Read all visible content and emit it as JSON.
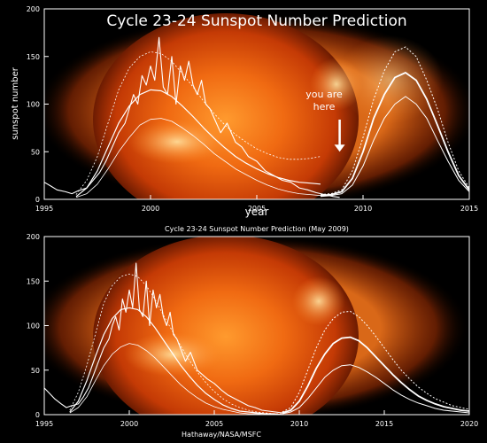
{
  "chart_data": [
    {
      "type": "line",
      "title": "Cycle 23-24 Sunspot Number Prediction",
      "ylabel": "sunspot number",
      "xlabel": "year",
      "xlim": [
        1995,
        2015
      ],
      "ylim": [
        0,
        200
      ],
      "x_ticks": [
        "1995",
        "2000",
        "2005",
        "2010",
        "2015"
      ],
      "y_ticks": [
        "0",
        "50",
        "100",
        "150",
        "200"
      ],
      "annotation": {
        "text_line1": "you are",
        "text_line2": "here",
        "x": 2008.9,
        "y": 50
      },
      "observed": {
        "x": [
          1995.0,
          1995.3,
          1995.6,
          1996.0,
          1996.3,
          1996.6,
          1997.0,
          1997.3,
          1997.6,
          1997.9,
          1998.2,
          1998.5,
          1998.8,
          1999.0,
          1999.2,
          1999.4,
          1999.6,
          1999.8,
          2000.0,
          2000.2,
          2000.4,
          2000.6,
          2000.8,
          2001.0,
          2001.2,
          2001.4,
          2001.6,
          2001.8,
          2002.0,
          2002.2,
          2002.4,
          2002.6,
          2002.8,
          2003.0,
          2003.3,
          2003.6,
          2004.0,
          2004.3,
          2004.6,
          2005.0,
          2005.4,
          2005.8,
          2006.2,
          2006.6,
          2007.0,
          2007.4,
          2007.8,
          2008.2,
          2008.6,
          2008.9
        ],
        "y": [
          18,
          14,
          10,
          8,
          6,
          9,
          12,
          20,
          28,
          40,
          55,
          70,
          80,
          95,
          110,
          100,
          130,
          120,
          140,
          125,
          170,
          118,
          110,
          150,
          100,
          140,
          125,
          145,
          120,
          110,
          125,
          100,
          95,
          85,
          70,
          80,
          60,
          55,
          45,
          40,
          30,
          25,
          20,
          18,
          12,
          10,
          7,
          5,
          3,
          2
        ]
      },
      "prediction": {
        "x": [
          2008.0,
          2008.5,
          2009.0,
          2009.5,
          2010.0,
          2010.5,
          2011.0,
          2011.5,
          2012.0,
          2012.5,
          2013.0,
          2013.5,
          2014.0,
          2014.5,
          2015.0
        ],
        "upper": [
          5,
          6,
          10,
          30,
          65,
          105,
          135,
          155,
          160,
          150,
          125,
          95,
          60,
          30,
          12
        ],
        "middle": [
          4,
          5,
          8,
          22,
          50,
          85,
          110,
          128,
          133,
          125,
          105,
          78,
          50,
          25,
          10
        ],
        "lower": [
          3,
          4,
          6,
          15,
          35,
          62,
          85,
          100,
          108,
          100,
          85,
          62,
          40,
          20,
          8
        ]
      },
      "cycle23_fit": {
        "x": [
          1996.5,
          1997.0,
          1997.5,
          1998.0,
          1998.5,
          1999.0,
          1999.5,
          2000.0,
          2000.5,
          2001.0,
          2001.5,
          2002.0,
          2002.5,
          2003.0,
          2003.5,
          2004.0,
          2004.5,
          2005.0,
          2005.5,
          2006.0,
          2006.5,
          2007.0,
          2007.5,
          2008.0
        ],
        "upper": [
          5,
          20,
          45,
          80,
          115,
          138,
          150,
          155,
          153,
          145,
          132,
          118,
          103,
          90,
          78,
          68,
          60,
          53,
          48,
          44,
          42,
          42,
          43,
          45
        ],
        "middle": [
          3,
          12,
          30,
          55,
          80,
          98,
          110,
          115,
          114,
          108,
          98,
          87,
          75,
          64,
          54,
          45,
          38,
          32,
          27,
          23,
          20,
          18,
          17,
          16
        ],
        "lower": [
          2,
          6,
          16,
          32,
          50,
          65,
          78,
          84,
          85,
          82,
          75,
          67,
          58,
          48,
          40,
          32,
          26,
          20,
          15,
          11,
          8,
          6,
          5,
          4
        ]
      }
    },
    {
      "type": "line",
      "title": "Cycle 23-24 Sunspot Number Prediction (May 2009)",
      "credit": "Hathaway/NASA/MSFC",
      "xlim": [
        1995,
        2020
      ],
      "ylim": [
        0,
        200
      ],
      "x_ticks": [
        "1995",
        "2000",
        "2005",
        "2010",
        "2015",
        "2020"
      ],
      "y_ticks": [
        "0",
        "50",
        "100",
        "150",
        "200"
      ],
      "observed": {
        "x": [
          1995.0,
          1995.3,
          1995.6,
          1996.0,
          1996.3,
          1996.6,
          1997.0,
          1997.3,
          1997.6,
          1997.9,
          1998.2,
          1998.5,
          1998.8,
          1999.0,
          1999.2,
          1999.4,
          1999.6,
          1999.8,
          2000.0,
          2000.2,
          2000.4,
          2000.6,
          2000.8,
          2001.0,
          2001.2,
          2001.4,
          2001.6,
          2001.8,
          2002.0,
          2002.2,
          2002.4,
          2002.6,
          2002.8,
          2003.0,
          2003.3,
          2003.6,
          2004.0,
          2004.3,
          2004.6,
          2005.0,
          2005.4,
          2005.8,
          2006.2,
          2006.6,
          2007.0,
          2007.4,
          2007.8,
          2008.2,
          2008.6,
          2009.0,
          2009.3
        ],
        "y": [
          30,
          24,
          18,
          12,
          8,
          10,
          12,
          20,
          30,
          45,
          60,
          75,
          85,
          100,
          110,
          95,
          130,
          115,
          140,
          120,
          170,
          118,
          110,
          150,
          100,
          140,
          120,
          135,
          110,
          100,
          115,
          90,
          85,
          75,
          60,
          70,
          50,
          45,
          40,
          35,
          28,
          22,
          18,
          14,
          10,
          8,
          5,
          4,
          3,
          2,
          2
        ]
      },
      "prediction": {
        "x": [
          2009.0,
          2009.5,
          2010.0,
          2010.5,
          2011.0,
          2011.5,
          2012.0,
          2012.5,
          2013.0,
          2013.5,
          2014.0,
          2014.5,
          2015.0,
          2015.5,
          2016.0,
          2016.5,
          2017.0,
          2017.5,
          2018.0,
          2018.5,
          2019.0,
          2019.5,
          2020.0
        ],
        "upper": [
          3,
          8,
          25,
          50,
          75,
          95,
          108,
          115,
          116,
          110,
          100,
          88,
          75,
          62,
          50,
          40,
          31,
          24,
          18,
          14,
          10,
          8,
          6
        ],
        "middle": [
          2,
          5,
          15,
          32,
          52,
          68,
          80,
          86,
          87,
          83,
          75,
          65,
          55,
          45,
          36,
          28,
          21,
          16,
          12,
          9,
          7,
          5,
          4
        ],
        "lower": [
          1,
          3,
          8,
          18,
          30,
          42,
          50,
          55,
          56,
          53,
          48,
          42,
          35,
          28,
          22,
          17,
          13,
          10,
          7,
          5,
          4,
          3,
          2
        ]
      },
      "cycle23_fit": {
        "x": [
          1996.5,
          1997.0,
          1997.5,
          1998.0,
          1998.5,
          1999.0,
          1999.5,
          2000.0,
          2000.5,
          2001.0,
          2001.5,
          2002.0,
          2002.5,
          2003.0,
          2003.5,
          2004.0,
          2004.5,
          2005.0,
          2005.5,
          2006.0,
          2006.5,
          2007.0,
          2007.5,
          2008.0,
          2008.5,
          2009.0
        ],
        "upper": [
          5,
          25,
          55,
          90,
          125,
          145,
          155,
          158,
          155,
          145,
          130,
          112,
          95,
          78,
          62,
          48,
          36,
          26,
          18,
          12,
          8,
          5,
          3,
          2,
          1,
          1
        ],
        "middle": [
          3,
          15,
          38,
          65,
          90,
          108,
          118,
          120,
          118,
          110,
          98,
          84,
          70,
          56,
          44,
          33,
          24,
          17,
          11,
          7,
          4,
          3,
          2,
          1,
          1,
          0
        ],
        "lower": [
          2,
          8,
          20,
          38,
          55,
          68,
          76,
          80,
          78,
          72,
          64,
          54,
          44,
          34,
          26,
          19,
          13,
          9,
          6,
          4,
          2,
          1,
          1,
          0,
          0,
          0
        ]
      }
    }
  ]
}
